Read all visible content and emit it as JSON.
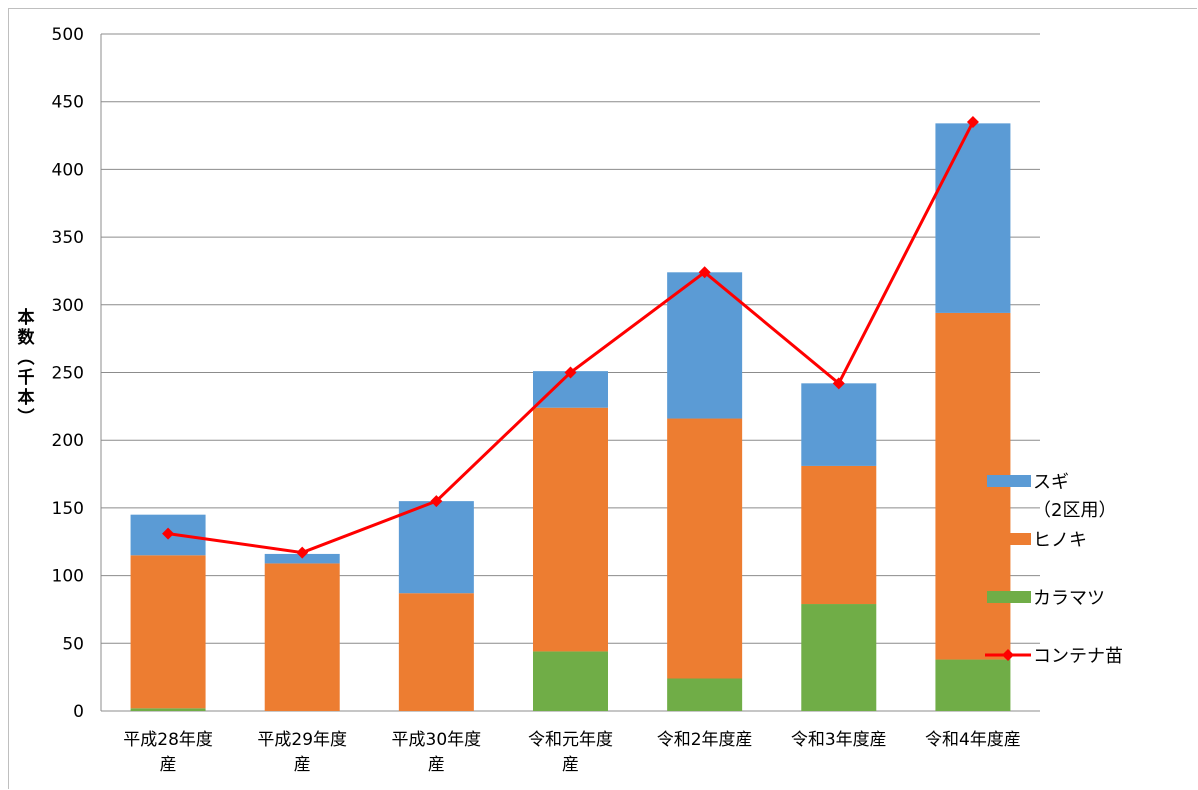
{
  "chart_data": {
    "type": "bar",
    "stacked": true,
    "ylabel_chars": [
      "本",
      "数",
      "︵",
      "千",
      "本",
      "︶"
    ],
    "ylim": [
      0,
      500
    ],
    "yticks": [
      "0",
      "50",
      "100",
      "150",
      "200",
      "250",
      "300",
      "350",
      "400",
      "450",
      "500"
    ],
    "grid": true,
    "legend_position": "right",
    "categories": [
      [
        "平成28年度",
        "産"
      ],
      [
        "平成29年度",
        "産"
      ],
      [
        "平成30年度",
        "産"
      ],
      [
        "令和元年度",
        "産"
      ],
      [
        "令和2年度産"
      ],
      [
        "令和3年度産"
      ],
      [
        "令和4年度産"
      ]
    ],
    "series": [
      {
        "name": "カラマツ",
        "kind": "bar",
        "color": "#70ad47",
        "values": [
          2,
          0,
          0,
          44,
          24,
          79,
          38
        ]
      },
      {
        "name": "ヒノキ",
        "kind": "bar",
        "color": "#ed7d31",
        "values": [
          113,
          109,
          87,
          180,
          192,
          102,
          256
        ]
      },
      {
        "name_lines": [
          "スギ",
          "（2区用）"
        ],
        "kind": "bar",
        "color": "#5b9bd5",
        "values": [
          30,
          7,
          68,
          27,
          108,
          61,
          140
        ]
      },
      {
        "name": "コンテナ苗",
        "kind": "line",
        "color": "#ff0000",
        "values": [
          131,
          117,
          155,
          250,
          324,
          242,
          435
        ]
      }
    ]
  }
}
